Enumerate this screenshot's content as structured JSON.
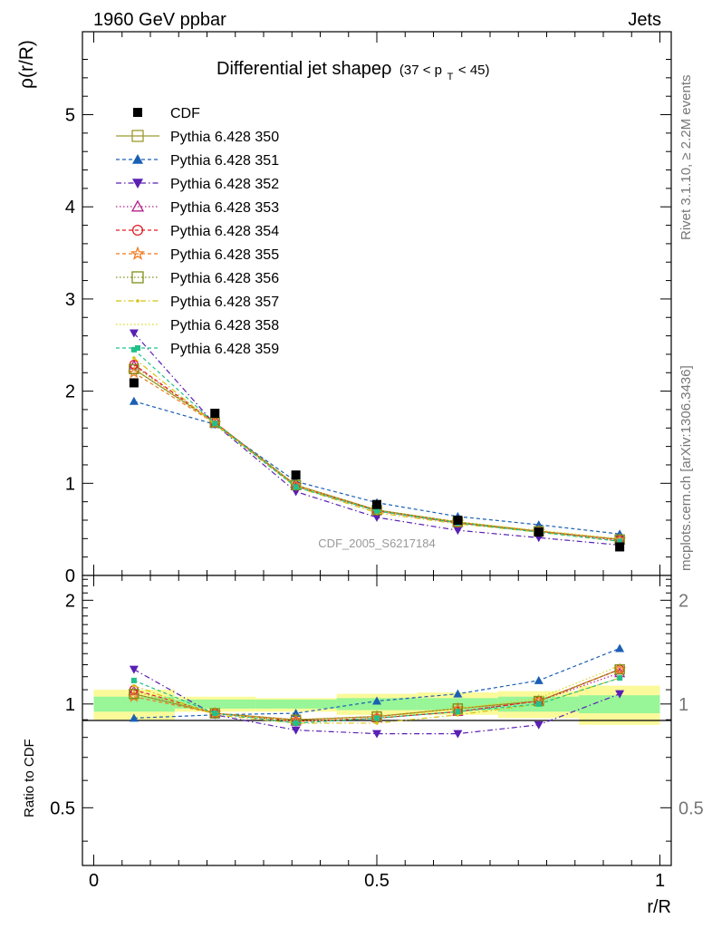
{
  "header": {
    "energy": "1960 GeV ppbar",
    "process": "Jets"
  },
  "side": {
    "rivet": "Rivet 3.1.10, ≥ 2.2M events",
    "mcplots": "mcplots.cern.ch [arXiv:1306.3436]"
  },
  "watermark": "CDF_2005_S6217184",
  "chart_data": [
    {
      "type": "scatter",
      "title_main": "Differential jet shapeρ",
      "title_sub": "(37 < p",
      "title_sub_idx": "T",
      "title_sub_end": " < 45)",
      "ylabel": "ρ(r/R)",
      "ylim": [
        0,
        5.9
      ],
      "xlim": [
        -0.02,
        1.02
      ],
      "yticks": [
        0,
        1,
        2,
        3,
        4,
        5
      ],
      "ytick_labels": [
        "0",
        "1",
        "2",
        "3",
        "4",
        "5"
      ],
      "x": [
        0.071,
        0.214,
        0.357,
        0.5,
        0.643,
        0.786,
        0.929
      ],
      "data": {
        "name": "CDF",
        "values": [
          2.09,
          1.76,
          1.09,
          0.77,
          0.6,
          0.47,
          0.31
        ]
      },
      "series": [
        {
          "name": "Pythia 6.428 350",
          "values": [
            2.24,
            1.66,
            0.98,
            0.71,
            0.58,
            0.48,
            0.39
          ]
        },
        {
          "name": "Pythia 6.428 351",
          "values": [
            1.89,
            1.64,
            1.02,
            0.79,
            0.64,
            0.55,
            0.45
          ]
        },
        {
          "name": "Pythia 6.428 352",
          "values": [
            2.63,
            1.64,
            0.91,
            0.63,
            0.49,
            0.41,
            0.33
          ]
        },
        {
          "name": "Pythia 6.428 353",
          "values": [
            2.28,
            1.65,
            0.97,
            0.7,
            0.57,
            0.48,
            0.38
          ]
        },
        {
          "name": "Pythia 6.428 354",
          "values": [
            2.29,
            1.66,
            0.97,
            0.7,
            0.57,
            0.48,
            0.39
          ]
        },
        {
          "name": "Pythia 6.428 355",
          "values": [
            2.2,
            1.65,
            0.98,
            0.71,
            0.58,
            0.48,
            0.39
          ]
        },
        {
          "name": "Pythia 6.428 356",
          "values": [
            2.24,
            1.66,
            0.98,
            0.71,
            0.58,
            0.48,
            0.39
          ]
        },
        {
          "name": "Pythia 6.428 357",
          "values": [
            2.36,
            1.64,
            0.96,
            0.68,
            0.56,
            0.47,
            0.37
          ]
        },
        {
          "name": "Pythia 6.428 358",
          "values": [
            2.27,
            1.65,
            0.97,
            0.7,
            0.58,
            0.49,
            0.4
          ]
        },
        {
          "name": "Pythia 6.428 359",
          "values": [
            2.45,
            1.65,
            0.96,
            0.7,
            0.57,
            0.47,
            0.37
          ]
        }
      ]
    },
    {
      "type": "scatter",
      "ylabel": "Ratio to CDF",
      "xlabel": "r/R",
      "ylim": [
        0.34,
        2.36
      ],
      "xlim": [
        -0.02,
        1.02
      ],
      "yticks": [
        0.5,
        1,
        2
      ],
      "ytick_labels": [
        "0.5",
        "1",
        "2"
      ],
      "xticks": [
        0,
        0.5,
        1
      ],
      "xtick_labels": [
        "0",
        "0.5",
        "1"
      ],
      "x": [
        0.071,
        0.214,
        0.357,
        0.5,
        0.643,
        0.786,
        0.929
      ],
      "band_edges": [
        0,
        0.143,
        0.286,
        0.429,
        0.571,
        0.714,
        0.857,
        1.0
      ],
      "band_outer": [
        [
          0.9,
          1.1
        ],
        [
          0.95,
          1.05
        ],
        [
          0.95,
          1.04
        ],
        [
          0.93,
          1.07
        ],
        [
          0.93,
          1.08
        ],
        [
          0.91,
          1.09
        ],
        [
          0.87,
          1.13
        ]
      ],
      "band_inner": [
        [
          0.95,
          1.05
        ],
        [
          0.97,
          1.03
        ],
        [
          0.97,
          1.03
        ],
        [
          0.96,
          1.04
        ],
        [
          0.96,
          1.04
        ],
        [
          0.95,
          1.05
        ],
        [
          0.94,
          1.06
        ]
      ],
      "series": [
        {
          "name": "Pythia 6.428 350",
          "values": [
            1.07,
            0.94,
            0.9,
            0.92,
            0.97,
            1.02,
            1.26
          ]
        },
        {
          "name": "Pythia 6.428 351",
          "values": [
            0.91,
            0.93,
            0.94,
            1.02,
            1.07,
            1.17,
            1.45
          ]
        },
        {
          "name": "Pythia 6.428 352",
          "values": [
            1.26,
            0.93,
            0.84,
            0.82,
            0.82,
            0.87,
            1.07
          ]
        },
        {
          "name": "Pythia 6.428 353",
          "values": [
            1.09,
            0.94,
            0.89,
            0.91,
            0.95,
            1.02,
            1.23
          ]
        },
        {
          "name": "Pythia 6.428 354",
          "values": [
            1.1,
            0.94,
            0.89,
            0.91,
            0.95,
            1.02,
            1.26
          ]
        },
        {
          "name": "Pythia 6.428 355",
          "values": [
            1.05,
            0.94,
            0.9,
            0.92,
            0.97,
            1.02,
            1.26
          ]
        },
        {
          "name": "Pythia 6.428 356",
          "values": [
            1.07,
            0.94,
            0.9,
            0.92,
            0.97,
            1.02,
            1.26
          ]
        },
        {
          "name": "Pythia 6.428 357",
          "values": [
            1.13,
            0.93,
            0.88,
            0.88,
            0.93,
            1.0,
            1.19
          ]
        },
        {
          "name": "Pythia 6.428 358",
          "values": [
            1.09,
            0.94,
            0.89,
            0.91,
            0.97,
            1.04,
            1.29
          ]
        },
        {
          "name": "Pythia 6.428 359",
          "values": [
            1.17,
            0.94,
            0.88,
            0.91,
            0.95,
            1.0,
            1.19
          ]
        }
      ]
    }
  ],
  "styles": [
    {
      "color": "#9a9a30",
      "dash": "",
      "marker": "square-open"
    },
    {
      "color": "#1a5fb4",
      "dash": "4,3",
      "marker": "triangle-up"
    },
    {
      "color": "#5a1fb4",
      "dash": "6,3,1.5,3",
      "marker": "triangle-down"
    },
    {
      "color": "#b4208a",
      "dash": "1.5,2.5",
      "marker": "triangle-up-open"
    },
    {
      "color": "#e01b24",
      "dash": "4,3",
      "marker": "circle-open"
    },
    {
      "color": "#f07a20",
      "dash": "4,3",
      "marker": "star-open"
    },
    {
      "color": "#80901a",
      "dash": "1.5,2.5",
      "marker": "square-open"
    },
    {
      "color": "#d4c20e",
      "dash": "6,3,1.5,3",
      "marker": "dot"
    },
    {
      "color": "#d8d820",
      "dash": "1.5,2.5",
      "marker": "none"
    },
    {
      "color": "#22c08a",
      "dash": "4,3",
      "marker": "square-small"
    }
  ],
  "band_colors": {
    "outer": "#fafa9a",
    "inner": "#98f598"
  }
}
